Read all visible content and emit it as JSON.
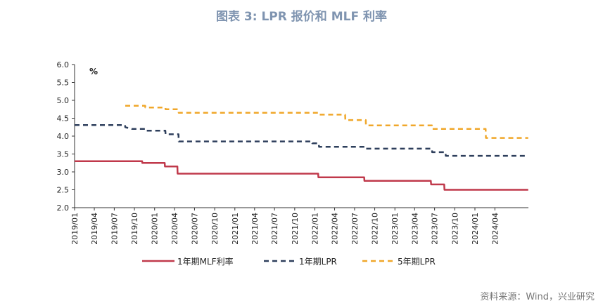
{
  "title": "图表 3:  LPR 报价和 MLF 利率",
  "source": "资料来源：Wind，兴业研究",
  "chart_data": {
    "type": "line",
    "unit_label": "%",
    "ylim": [
      2.0,
      6.0
    ],
    "y_ticks": [
      "2.0",
      "2.5",
      "3.0",
      "3.5",
      "4.0",
      "4.5",
      "5.0",
      "5.5",
      "6.0"
    ],
    "x_range": [
      "2019/01",
      "2024/09"
    ],
    "x_ticks": [
      "2019/01",
      "2019/04",
      "2019/07",
      "2019/10",
      "2020/01",
      "2020/04",
      "2020/07",
      "2020/10",
      "2021/01",
      "2021/04",
      "2021/07",
      "2021/10",
      "2022/01",
      "2022/04",
      "2022/07",
      "2022/10",
      "2023/01",
      "2023/04",
      "2023/07",
      "2023/10",
      "2024/01",
      "2024/04"
    ],
    "grid": false,
    "legend_position": "bottom",
    "series": [
      {
        "name": "1年期MLF利率",
        "color": "#c0394b",
        "dash": "solid",
        "points": [
          [
            "2019/01/01",
            3.3
          ],
          [
            "2019/11/05",
            3.3
          ],
          [
            "2019/11/06",
            3.25
          ],
          [
            "2020/02/16",
            3.25
          ],
          [
            "2020/02/17",
            3.15
          ],
          [
            "2020/04/14",
            3.15
          ],
          [
            "2020/04/15",
            2.95
          ],
          [
            "2022/01/16",
            2.95
          ],
          [
            "2022/01/17",
            2.85
          ],
          [
            "2022/08/14",
            2.85
          ],
          [
            "2022/08/15",
            2.75
          ],
          [
            "2023/06/14",
            2.75
          ],
          [
            "2023/06/15",
            2.65
          ],
          [
            "2023/08/14",
            2.65
          ],
          [
            "2023/08/15",
            2.5
          ],
          [
            "2024/08/31",
            2.5
          ]
        ]
      },
      {
        "name": "1年期LPR",
        "color": "#2e3f5c",
        "dash": "dashed",
        "points": [
          [
            "2019/01/01",
            4.31
          ],
          [
            "2019/08/19",
            4.31
          ],
          [
            "2019/08/20",
            4.25
          ],
          [
            "2019/09/19",
            4.2
          ],
          [
            "2019/11/19",
            4.2
          ],
          [
            "2019/11/20",
            4.15
          ],
          [
            "2020/02/19",
            4.15
          ],
          [
            "2020/02/20",
            4.05
          ],
          [
            "2020/04/19",
            4.05
          ],
          [
            "2020/04/20",
            3.85
          ],
          [
            "2021/12/19",
            3.85
          ],
          [
            "2021/12/20",
            3.8
          ],
          [
            "2022/01/19",
            3.8
          ],
          [
            "2022/01/20",
            3.7
          ],
          [
            "2022/08/21",
            3.7
          ],
          [
            "2022/08/22",
            3.65
          ],
          [
            "2023/06/19",
            3.65
          ],
          [
            "2023/06/20",
            3.55
          ],
          [
            "2023/08/20",
            3.55
          ],
          [
            "2023/08/21",
            3.45
          ],
          [
            "2024/08/31",
            3.45
          ]
        ]
      },
      {
        "name": "5年期LPR",
        "color": "#f0a72a",
        "dash": "dashed",
        "points": [
          [
            "2019/08/20",
            4.85
          ],
          [
            "2019/11/19",
            4.85
          ],
          [
            "2019/11/20",
            4.8
          ],
          [
            "2020/02/19",
            4.8
          ],
          [
            "2020/02/20",
            4.75
          ],
          [
            "2020/04/19",
            4.75
          ],
          [
            "2020/04/20",
            4.65
          ],
          [
            "2022/01/19",
            4.65
          ],
          [
            "2022/01/20",
            4.6
          ],
          [
            "2022/05/19",
            4.6
          ],
          [
            "2022/05/20",
            4.45
          ],
          [
            "2022/08/21",
            4.45
          ],
          [
            "2022/08/22",
            4.3
          ],
          [
            "2023/06/19",
            4.3
          ],
          [
            "2023/06/20",
            4.2
          ],
          [
            "2024/02/19",
            4.2
          ],
          [
            "2024/02/20",
            3.95
          ],
          [
            "2024/08/31",
            3.95
          ]
        ]
      }
    ]
  }
}
